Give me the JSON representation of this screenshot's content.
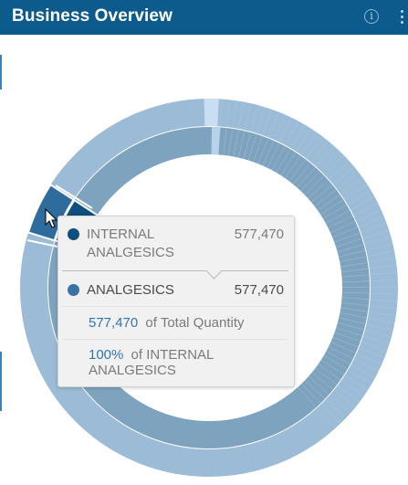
{
  "header": {
    "title": "Business Overview",
    "info_label": "i"
  },
  "colors": {
    "header_bg": "#0d5a8c",
    "ring_outer": "#9bbbd6",
    "ring_inner": "#7ea3bf",
    "highlight_outer": "#2e6c9e",
    "highlight_inner": "#0e4f7e",
    "accent_text": "#3374ad"
  },
  "tooltip": {
    "parent_name": "INTERNAL ANALGESICS",
    "parent_value": "577,470",
    "child_name": "ANALGESICS",
    "child_value": "577,470",
    "total_value": "577,470",
    "total_suffix": "of Total Quantity",
    "share_value": "100%",
    "share_suffix": "of INTERNAL ANALGESICS"
  },
  "chart_data": {
    "type": "sunburst",
    "hovered_path": [
      "INTERNAL ANALGESICS",
      "ANALGESICS"
    ],
    "hovered_quantity": 577470,
    "hovered_share_of_parent_percent": 100
  }
}
